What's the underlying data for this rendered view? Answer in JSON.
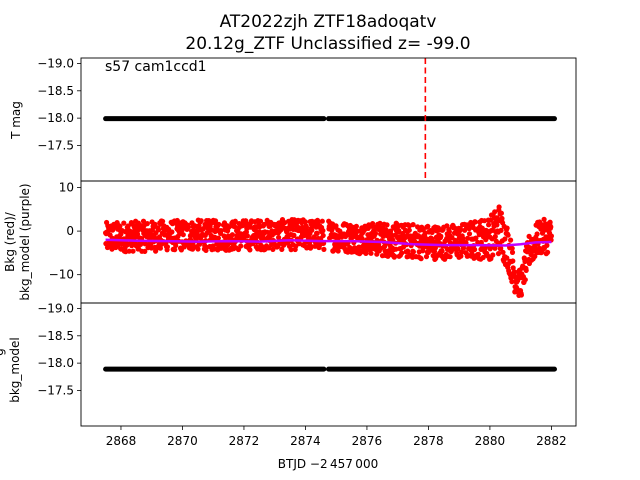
{
  "title_line1": "AT2022zjh  ZTF18adoqatv",
  "title_line2": "20.12g_ZTF Unclassified z= -99.0",
  "chart_data": [
    {
      "type": "scatter",
      "panel": "top",
      "ylabel": "T mag",
      "annotation": "s57 cam1ccd1",
      "ylim": [
        -16.85,
        -19.1
      ],
      "yticks": [
        -19.0,
        -18.5,
        -18.0,
        -17.5
      ],
      "ytick_labels": [
        "−19.0",
        "−18.5",
        "−18.0",
        "−17.5"
      ],
      "series": [
        {
          "color": "#000000",
          "segments": [
            [
              2867.5,
              2874.6,
              -17.99
            ],
            [
              2874.75,
              2882.1,
              -17.99
            ]
          ]
        }
      ],
      "vline": {
        "x": 2877.9,
        "color": "#ff0000",
        "style": "dashed"
      }
    },
    {
      "type": "scatter",
      "panel": "middle",
      "ylabel_line1": "Bkg (red)/",
      "ylabel_line2": "bkg_model (purple)",
      "ylim": [
        -16.5,
        11.5
      ],
      "yticks": [
        10,
        0,
        -10
      ],
      "ytick_labels": [
        "10",
        "0",
        "−10"
      ],
      "series": [
        {
          "color": "#ff0000",
          "type": "scatter",
          "x": [
            2867.5,
            2868.0,
            2868.5,
            2869.0,
            2869.5,
            2870.0,
            2870.5,
            2871.0,
            2871.5,
            2872.0,
            2872.5,
            2873.0,
            2873.5,
            2874.0,
            2874.5,
            2875.0,
            2875.5,
            2876.0,
            2876.5,
            2877.0,
            2877.5,
            2878.0,
            2878.5,
            2879.0,
            2879.5,
            2880.0,
            2880.3,
            2880.6,
            2880.8,
            2881.0,
            2881.3,
            2881.6,
            2882.0
          ],
          "center": [
            -1.5,
            -1.3,
            -1.2,
            -1.2,
            -1.0,
            -1.0,
            -0.9,
            -1.0,
            -1.0,
            -0.9,
            -0.8,
            -0.9,
            -0.8,
            -0.8,
            -0.8,
            -1.2,
            -1.5,
            -1.8,
            -1.8,
            -2.2,
            -2.3,
            -2.5,
            -2.5,
            -2.4,
            -2.0,
            -1.5,
            0.5,
            -4.0,
            -10.0,
            -12.5,
            -4.0,
            -1.5,
            -1.0
          ],
          "spread": [
            3.5,
            3.5,
            3.5,
            3.5,
            3.5,
            3.5,
            3.5,
            3.5,
            3.5,
            3.5,
            3.5,
            3.5,
            3.5,
            3.5,
            3.5,
            3.5,
            3.5,
            3.5,
            4.0,
            4.0,
            4.0,
            4.0,
            4.0,
            4.0,
            4.5,
            5.0,
            6.0,
            5.0,
            4.0,
            3.0,
            4.0,
            4.0,
            4.0
          ]
        },
        {
          "color": "#bf00ff",
          "type": "line",
          "x": [
            2867.5,
            2868.5,
            2869.5,
            2870.5,
            2871.5,
            2872.5,
            2873.5,
            2874.5,
            2875.5,
            2876.5,
            2877.5,
            2878.5,
            2879.5,
            2880.5,
            2881.0,
            2881.5,
            2882.0
          ],
          "y": [
            -2.0,
            -2.2,
            -2.3,
            -2.4,
            -2.3,
            -2.4,
            -2.1,
            -2.3,
            -2.3,
            -2.5,
            -3.0,
            -3.2,
            -3.2,
            -3.3,
            -3.0,
            -2.6,
            -2.5
          ]
        }
      ]
    },
    {
      "type": "scatter",
      "panel": "bottom",
      "ylabel_line1": "g",
      "ylabel_line2": "bkg_model",
      "xlabel": "BTJD −2 457 000",
      "ylim": [
        -16.85,
        -19.1
      ],
      "yticks": [
        -19.0,
        -18.5,
        -18.0,
        -17.5
      ],
      "ytick_labels": [
        "−19.0",
        "−18.5",
        "−18.0",
        "−17.5"
      ],
      "xlim": [
        2866.7,
        2882.8
      ],
      "xticks": [
        2868,
        2870,
        2872,
        2874,
        2876,
        2878,
        2880,
        2882
      ],
      "xtick_labels": [
        "2868",
        "2870",
        "2872",
        "2874",
        "2876",
        "2878",
        "2880",
        "2882"
      ],
      "series": [
        {
          "color": "#000000",
          "segments": [
            [
              2867.5,
              2874.6,
              -17.89
            ],
            [
              2874.75,
              2882.1,
              -17.89
            ]
          ]
        }
      ]
    }
  ]
}
